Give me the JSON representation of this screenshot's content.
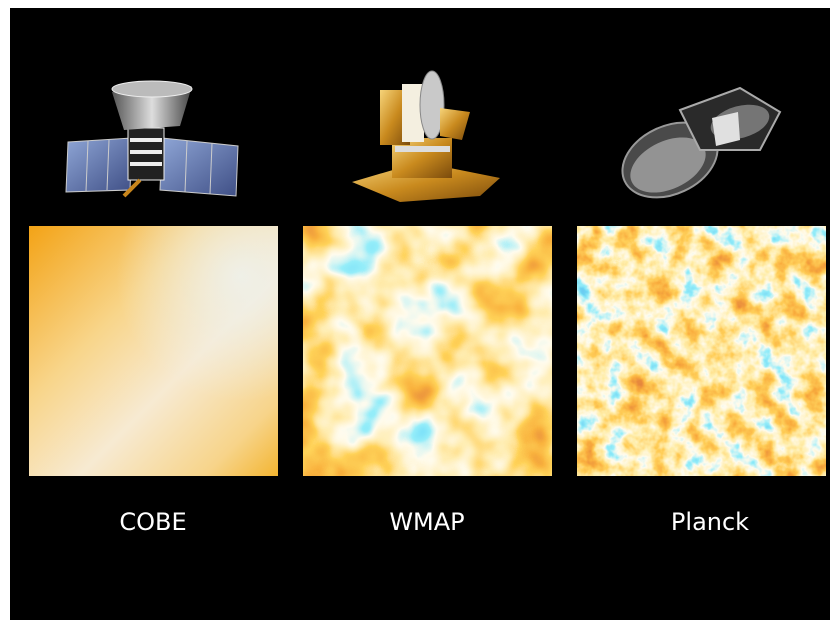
{
  "panels": [
    {
      "label": "COBE"
    },
    {
      "label": "WMAP"
    },
    {
      "label": "Planck"
    }
  ]
}
